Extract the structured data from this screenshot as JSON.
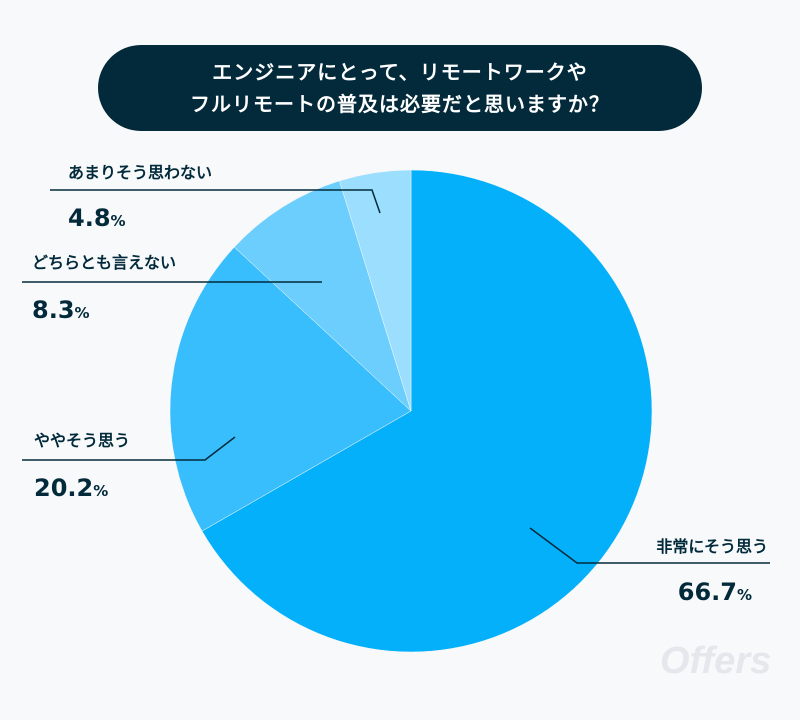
{
  "chart_data": {
    "type": "pie",
    "title_line1": "エンジニアにとって、リモートワークや",
    "title_line2": "フルリモートの普及は必要だと思いますか？",
    "start": "top",
    "direction": "clockwise",
    "unit": "%",
    "slices": [
      {
        "label": "非常にそう思う",
        "value": 66.7,
        "display": "66.7",
        "color": "#05b0fb"
      },
      {
        "label": "ややそう思う",
        "value": 20.2,
        "display": "20.2",
        "color": "#38befc"
      },
      {
        "label": "どちらとも言えない",
        "value": 8.3,
        "display": "8.3",
        "color": "#6bcefd"
      },
      {
        "label": "あまりそう思わない",
        "value": 4.8,
        "display": "4.8",
        "color": "#9cdefd"
      }
    ]
  },
  "logo": "Offers"
}
